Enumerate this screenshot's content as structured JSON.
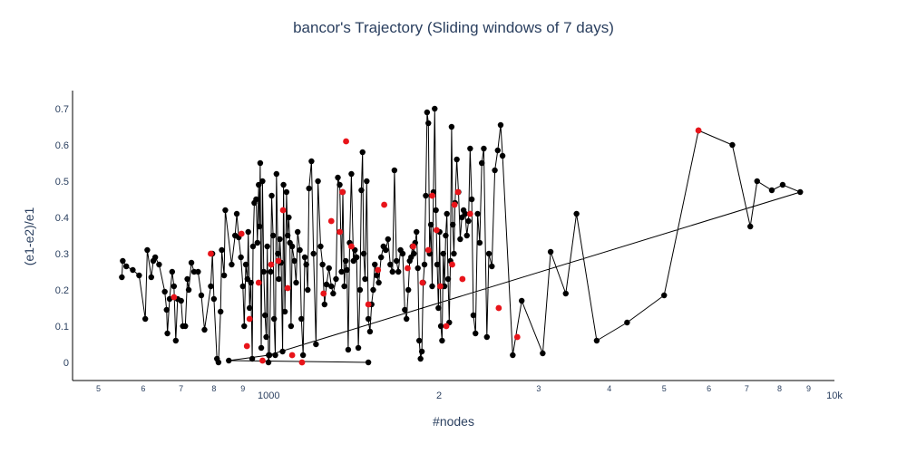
{
  "chart_data": {
    "type": "scatter",
    "mode": "lines+markers",
    "title": "bancor's Trajectory (Sliding windows of 7 days)",
    "xlabel": "#nodes",
    "ylabel": "(e1-e2)/e1",
    "x_scale": "log",
    "xlim": [
      450,
      10000
    ],
    "ylim": [
      -0.05,
      0.75
    ],
    "x_ticks": [
      {
        "value": 500,
        "label": "5"
      },
      {
        "value": 600,
        "label": "6"
      },
      {
        "value": 700,
        "label": "7"
      },
      {
        "value": 800,
        "label": "8"
      },
      {
        "value": 900,
        "label": "9"
      },
      {
        "value": 1000,
        "label": "1000"
      },
      {
        "value": 2000,
        "label": "2"
      },
      {
        "value": 3000,
        "label": "3"
      },
      {
        "value": 4000,
        "label": "4"
      },
      {
        "value": 5000,
        "label": "5"
      },
      {
        "value": 6000,
        "label": "6"
      },
      {
        "value": 7000,
        "label": "7"
      },
      {
        "value": 8000,
        "label": "8"
      },
      {
        "value": 9000,
        "label": "9"
      },
      {
        "value": 10000,
        "label": "10k"
      }
    ],
    "y_ticks": [
      {
        "value": 0,
        "label": "0"
      },
      {
        "value": 0.1,
        "label": "0.1"
      },
      {
        "value": 0.2,
        "label": "0.2"
      },
      {
        "value": 0.3,
        "label": "0.3"
      },
      {
        "value": 0.4,
        "label": "0.4"
      },
      {
        "value": 0.5,
        "label": "0.5"
      },
      {
        "value": 0.6,
        "label": "0.6"
      },
      {
        "value": 0.7,
        "label": "0.7"
      }
    ],
    "grid": false,
    "line_color": "#000000",
    "marker_color": "#000000",
    "highlight_color": "#e8141a",
    "points": [
      [
        550,
        0.235
      ],
      [
        552,
        0.28
      ],
      [
        560,
        0.265
      ],
      [
        575,
        0.255
      ],
      [
        590,
        0.24
      ],
      [
        605,
        0.12
      ],
      [
        610,
        0.31
      ],
      [
        620,
        0.235
      ],
      [
        625,
        0.28
      ],
      [
        630,
        0.29
      ],
      [
        640,
        0.27
      ],
      [
        655,
        0.195
      ],
      [
        660,
        0.145
      ],
      [
        662,
        0.08
      ],
      [
        668,
        0.175
      ],
      [
        675,
        0.25
      ],
      [
        680,
        0.21
      ],
      [
        685,
        0.06
      ],
      [
        690,
        0.175
      ],
      [
        700,
        0.17
      ],
      [
        705,
        0.1
      ],
      [
        712,
        0.1
      ],
      [
        718,
        0.23
      ],
      [
        722,
        0.2
      ],
      [
        730,
        0.275
      ],
      [
        738,
        0.25
      ],
      [
        750,
        0.25
      ],
      [
        760,
        0.185
      ],
      [
        770,
        0.09
      ],
      [
        790,
        0.21
      ],
      [
        795,
        0.3
      ],
      [
        800,
        0.175
      ],
      [
        810,
        0.01
      ],
      [
        815,
        0.0
      ],
      [
        822,
        0.14
      ],
      [
        826,
        0.31
      ],
      [
        834,
        0.24
      ],
      [
        838,
        0.42
      ],
      [
        860,
        0.27
      ],
      [
        872,
        0.35
      ],
      [
        878,
        0.41
      ],
      [
        885,
        0.345
      ],
      [
        893,
        0.29
      ],
      [
        900,
        0.21
      ],
      [
        905,
        0.1
      ],
      [
        911,
        0.27
      ],
      [
        917,
        0.23
      ],
      [
        920,
        0.36
      ],
      [
        925,
        0.15
      ],
      [
        930,
        0.22
      ],
      [
        935,
        0.01
      ],
      [
        938,
        0.32
      ],
      [
        943,
        0.44
      ],
      [
        950,
        0.45
      ],
      [
        955,
        0.33
      ],
      [
        960,
        0.49
      ],
      [
        963,
        0.375
      ],
      [
        966,
        0.55
      ],
      [
        970,
        0.04
      ],
      [
        975,
        0.5
      ],
      [
        980,
        0.25
      ],
      [
        985,
        0.13
      ],
      [
        990,
        0.07
      ],
      [
        994,
        0.32
      ],
      [
        999,
        0.0
      ],
      [
        1003,
        0.02
      ],
      [
        1008,
        0.25
      ],
      [
        1012,
        0.46
      ],
      [
        1018,
        0.35
      ],
      [
        1022,
        0.12
      ],
      [
        1027,
        0.02
      ],
      [
        1032,
        0.52
      ],
      [
        1038,
        0.3
      ],
      [
        1042,
        0.23
      ],
      [
        1046,
        0.34
      ],
      [
        1052,
        0.275
      ],
      [
        1058,
        0.03
      ],
      [
        1062,
        0.49
      ],
      [
        1068,
        0.14
      ],
      [
        1075,
        0.47
      ],
      [
        1080,
        0.35
      ],
      [
        1085,
        0.4
      ],
      [
        1090,
        0.33
      ],
      [
        1095,
        0.1
      ],
      [
        1100,
        0.32
      ],
      [
        1110,
        0.28
      ],
      [
        1118,
        0.22
      ],
      [
        1125,
        0.36
      ],
      [
        1135,
        0.31
      ],
      [
        1142,
        0.12
      ],
      [
        1150,
        0.02
      ],
      [
        1158,
        0.29
      ],
      [
        1165,
        0.27
      ],
      [
        1172,
        0.2
      ],
      [
        1178,
        0.48
      ],
      [
        1190,
        0.555
      ],
      [
        1200,
        0.3
      ],
      [
        1212,
        0.05
      ],
      [
        1222,
        0.5
      ],
      [
        1235,
        0.32
      ],
      [
        1245,
        0.27
      ],
      [
        1255,
        0.16
      ],
      [
        1265,
        0.215
      ],
      [
        1278,
        0.26
      ],
      [
        1290,
        0.21
      ],
      [
        1300,
        0.19
      ],
      [
        1315,
        0.23
      ],
      [
        1325,
        0.51
      ],
      [
        1335,
        0.49
      ],
      [
        1345,
        0.25
      ],
      [
        1352,
        0.47
      ],
      [
        1360,
        0.21
      ],
      [
        1368,
        0.28
      ],
      [
        1375,
        0.255
      ],
      [
        1382,
        0.035
      ],
      [
        1390,
        0.33
      ],
      [
        1400,
        0.52
      ],
      [
        1412,
        0.28
      ],
      [
        1420,
        0.31
      ],
      [
        1430,
        0.29
      ],
      [
        1440,
        0.04
      ],
      [
        1450,
        0.2
      ],
      [
        1458,
        0.475
      ],
      [
        1465,
        0.58
      ],
      [
        1472,
        0.3
      ],
      [
        1480,
        0.23
      ],
      [
        1490,
        0.5
      ],
      [
        1500,
        0.12
      ],
      [
        1510,
        0.085
      ],
      [
        1520,
        0.16
      ],
      [
        1530,
        0.2
      ],
      [
        1540,
        0.27
      ],
      [
        1552,
        0.24
      ],
      [
        1565,
        0.22
      ],
      [
        1580,
        0.29
      ],
      [
        1595,
        0.32
      ],
      [
        1610,
        0.31
      ],
      [
        1625,
        0.34
      ],
      [
        1640,
        0.27
      ],
      [
        1655,
        0.25
      ],
      [
        1668,
        0.53
      ],
      [
        1682,
        0.28
      ],
      [
        1695,
        0.25
      ],
      [
        1710,
        0.31
      ],
      [
        1725,
        0.3
      ],
      [
        1740,
        0.145
      ],
      [
        1752,
        0.12
      ],
      [
        1765,
        0.2
      ],
      [
        1775,
        0.28
      ],
      [
        1785,
        0.29
      ],
      [
        1795,
        0.32
      ],
      [
        1805,
        0.3
      ],
      [
        1815,
        0.33
      ],
      [
        1825,
        0.36
      ],
      [
        1835,
        0.26
      ],
      [
        1845,
        0.06
      ],
      [
        1855,
        0.01
      ],
      [
        1865,
        0.03
      ],
      [
        1875,
        0.22
      ],
      [
        1885,
        0.27
      ],
      [
        1895,
        0.46
      ],
      [
        1905,
        0.69
      ],
      [
        1915,
        0.66
      ],
      [
        1925,
        0.3
      ],
      [
        1935,
        0.38
      ],
      [
        1945,
        0.21
      ],
      [
        1955,
        0.47
      ],
      [
        1965,
        0.7
      ],
      [
        1975,
        0.42
      ],
      [
        1985,
        0.27
      ],
      [
        1995,
        0.15
      ],
      [
        2005,
        0.36
      ],
      [
        2015,
        0.1
      ],
      [
        2025,
        0.06
      ],
      [
        2035,
        0.3
      ],
      [
        2045,
        0.21
      ],
      [
        2055,
        0.35
      ],
      [
        2065,
        0.41
      ],
      [
        2075,
        0.23
      ],
      [
        2085,
        0.11
      ],
      [
        2095,
        0.28
      ],
      [
        2105,
        0.65
      ],
      [
        2115,
        0.38
      ],
      [
        2125,
        0.3
      ],
      [
        2135,
        0.44
      ],
      [
        2150,
        0.56
      ],
      [
        2165,
        0.47
      ],
      [
        2180,
        0.34
      ],
      [
        2195,
        0.4
      ],
      [
        2210,
        0.42
      ],
      [
        2225,
        0.41
      ],
      [
        2240,
        0.35
      ],
      [
        2255,
        0.39
      ],
      [
        2270,
        0.59
      ],
      [
        2285,
        0.45
      ],
      [
        2300,
        0.13
      ],
      [
        2320,
        0.08
      ],
      [
        2340,
        0.41
      ],
      [
        2360,
        0.33
      ],
      [
        2380,
        0.55
      ],
      [
        2400,
        0.59
      ],
      [
        2430,
        0.07
      ],
      [
        2450,
        0.3
      ],
      [
        2480,
        0.265
      ],
      [
        2510,
        0.53
      ],
      [
        2540,
        0.585
      ],
      [
        2570,
        0.655
      ],
      [
        2590,
        0.57
      ],
      [
        2700,
        0.02
      ],
      [
        2800,
        0.17
      ],
      [
        3050,
        0.025
      ],
      [
        3150,
        0.305
      ],
      [
        3350,
        0.19
      ],
      [
        3500,
        0.41
      ],
      [
        3800,
        0.06
      ],
      [
        4300,
        0.11
      ],
      [
        5000,
        0.185
      ],
      [
        5750,
        0.64
      ],
      [
        6600,
        0.6
      ],
      [
        7100,
        0.375
      ],
      [
        7300,
        0.5
      ],
      [
        7750,
        0.475
      ],
      [
        8100,
        0.49
      ],
      [
        8700,
        0.47
      ],
      [
        1000,
        0.02
      ],
      [
        850,
        0.005
      ],
      [
        1500,
        0.0
      ]
    ],
    "highlighted_points": [
      [
        680,
        0.18
      ],
      [
        790,
        0.3
      ],
      [
        895,
        0.355
      ],
      [
        915,
        0.045
      ],
      [
        925,
        0.12
      ],
      [
        960,
        0.22
      ],
      [
        975,
        0.005
      ],
      [
        1010,
        0.27
      ],
      [
        1040,
        0.28
      ],
      [
        1060,
        0.42
      ],
      [
        1080,
        0.205
      ],
      [
        1100,
        0.02
      ],
      [
        1145,
        0.0
      ],
      [
        1250,
        0.19
      ],
      [
        1290,
        0.39
      ],
      [
        1335,
        0.36
      ],
      [
        1350,
        0.47
      ],
      [
        1370,
        0.61
      ],
      [
        1400,
        0.32
      ],
      [
        1500,
        0.16
      ],
      [
        1560,
        0.255
      ],
      [
        1600,
        0.435
      ],
      [
        1760,
        0.26
      ],
      [
        1800,
        0.32
      ],
      [
        1870,
        0.22
      ],
      [
        1915,
        0.31
      ],
      [
        1945,
        0.46
      ],
      [
        1980,
        0.365
      ],
      [
        2010,
        0.21
      ],
      [
        2060,
        0.1
      ],
      [
        2110,
        0.27
      ],
      [
        2130,
        0.435
      ],
      [
        2160,
        0.47
      ],
      [
        2200,
        0.23
      ],
      [
        2270,
        0.41
      ],
      [
        2550,
        0.15
      ],
      [
        2750,
        0.07
      ],
      [
        5750,
        0.64
      ]
    ]
  }
}
